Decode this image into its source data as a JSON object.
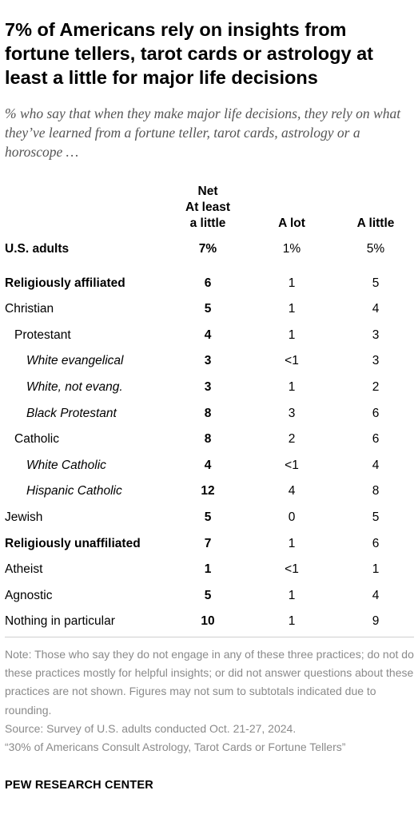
{
  "title": "7% of Americans rely on insights from fortune tellers, tarot cards or astrology at least a little for major life decisions",
  "subtitle": "% who say that when they make major life decisions, they rely on what they’ve learned from a fortune teller, tarot cards, astrology or a horoscope …",
  "chart_data": {
    "type": "table",
    "columns": [
      {
        "key": "net",
        "label_lines": [
          "Net",
          "At least",
          "a little"
        ]
      },
      {
        "key": "a_lot",
        "label_lines": [
          "A lot"
        ]
      },
      {
        "key": "a_little",
        "label_lines": [
          "A little"
        ]
      }
    ],
    "rows": [
      {
        "label": "U.S. adults",
        "indent": 0,
        "bold": true,
        "italic": false,
        "net": "7%",
        "a_lot": "1%",
        "a_little": "5%"
      },
      {
        "label": "Religiously affiliated",
        "indent": 0,
        "bold": true,
        "italic": false,
        "net": "6",
        "a_lot": "1",
        "a_little": "5"
      },
      {
        "label": "Christian",
        "indent": 0,
        "bold": false,
        "italic": false,
        "net": "5",
        "a_lot": "1",
        "a_little": "4"
      },
      {
        "label": "Protestant",
        "indent": 1,
        "bold": false,
        "italic": false,
        "net": "4",
        "a_lot": "1",
        "a_little": "3"
      },
      {
        "label": "White evangelical",
        "indent": 2,
        "bold": false,
        "italic": true,
        "net": "3",
        "a_lot": "<1",
        "a_little": "3"
      },
      {
        "label": "White, not evang.",
        "indent": 2,
        "bold": false,
        "italic": true,
        "net": "3",
        "a_lot": "1",
        "a_little": "2"
      },
      {
        "label": "Black Protestant",
        "indent": 2,
        "bold": false,
        "italic": true,
        "net": "8",
        "a_lot": "3",
        "a_little": "6"
      },
      {
        "label": "Catholic",
        "indent": 1,
        "bold": false,
        "italic": false,
        "net": "8",
        "a_lot": "2",
        "a_little": "6"
      },
      {
        "label": "White Catholic",
        "indent": 2,
        "bold": false,
        "italic": true,
        "net": "4",
        "a_lot": "<1",
        "a_little": "4"
      },
      {
        "label": "Hispanic Catholic",
        "indent": 2,
        "bold": false,
        "italic": true,
        "net": "12",
        "a_lot": "4",
        "a_little": "8"
      },
      {
        "label": "Jewish",
        "indent": 0,
        "bold": false,
        "italic": false,
        "net": "5",
        "a_lot": "0",
        "a_little": "5"
      },
      {
        "label": "Religiously unaffiliated",
        "indent": 0,
        "bold": true,
        "italic": false,
        "net": "7",
        "a_lot": "1",
        "a_little": "6"
      },
      {
        "label": "Atheist",
        "indent": 0,
        "bold": false,
        "italic": false,
        "net": "1",
        "a_lot": "<1",
        "a_little": "1"
      },
      {
        "label": "Agnostic",
        "indent": 0,
        "bold": false,
        "italic": false,
        "net": "5",
        "a_lot": "1",
        "a_little": "4"
      },
      {
        "label": "Nothing in particular",
        "indent": 0,
        "bold": false,
        "italic": false,
        "net": "10",
        "a_lot": "1",
        "a_little": "9"
      }
    ]
  },
  "note": "Note: Those who say they do not engage in any of these three practices; do not do these practices mostly for helpful insights; or did not answer questions about these practices are not shown. Figures may not sum to subtotals indicated due to rounding.",
  "source": "Source: Survey of U.S. adults conducted Oct. 21-27, 2024.",
  "report": "“30% of Americans Consult Astrology, Tarot Cards or Fortune Tellers”",
  "organization": "PEW RESEARCH CENTER"
}
